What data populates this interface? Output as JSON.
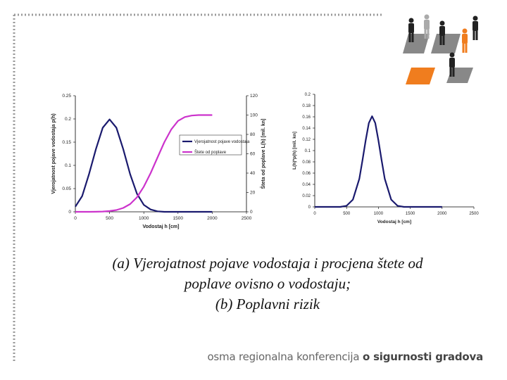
{
  "caption": {
    "line1": "(a) Vjerojatnost pojave vodostaja i procjena štete od",
    "line2": "poplave ovisno o vodostaju;",
    "line3": "(b) Poplavni rizik"
  },
  "footer": {
    "text_regular": "osma regionalna konferencija ",
    "text_bold": "o sigurnosti gradova"
  },
  "logo": {
    "icon": "people-figures-logo-icon",
    "highlight_color": "#f07d1e",
    "figure_color": "#222222",
    "tile_color": "#888888"
  },
  "chart_data": [
    {
      "type": "line",
      "xlabel": "Vodostaj h [cm]",
      "ylabel": "Vjerojatnost pojave vodostaja p(h)",
      "y2label": "Šteta od poplave L(h) [mil. kn]",
      "xlim": [
        0,
        2500
      ],
      "ylim": [
        0,
        0.25
      ],
      "y2lim": [
        0,
        120
      ],
      "xticks": [
        "0",
        "500",
        "1000",
        "1500",
        "2000",
        "2500"
      ],
      "yticks": [
        "0",
        "0.05",
        "0.1",
        "0.15",
        "0.2",
        "0.25"
      ],
      "y2ticks": [
        "0",
        "20",
        "40",
        "60",
        "80",
        "100",
        "120"
      ],
      "legend_position": "right",
      "grid": false,
      "series": [
        {
          "name": "Vjerojatnost pojave vodostaja",
          "axis": "left",
          "color": "#1a1a6e",
          "x": [
            0,
            100,
            200,
            300,
            400,
            500,
            600,
            700,
            800,
            900,
            1000,
            1100,
            1200,
            1300,
            1400,
            1500,
            1600,
            1700,
            1800,
            1900,
            2000
          ],
          "y": [
            0.011,
            0.034,
            0.081,
            0.135,
            0.181,
            0.199,
            0.181,
            0.135,
            0.081,
            0.039,
            0.015,
            0.005,
            0.001,
            0.0,
            0.0,
            0.0,
            0.0,
            0.0,
            0.0,
            0.0,
            0.0
          ]
        },
        {
          "name": "Štete od poplave",
          "axis": "right",
          "color": "#cc33cc",
          "x": [
            0,
            100,
            200,
            300,
            400,
            500,
            600,
            700,
            800,
            900,
            1000,
            1100,
            1200,
            1300,
            1400,
            1500,
            1600,
            1700,
            1800,
            1900,
            2000
          ],
          "y": [
            0,
            0,
            0,
            0.1,
            0.3,
            0.8,
            1.8,
            4.0,
            8.0,
            15.0,
            26.0,
            40.0,
            56.0,
            72.0,
            85.0,
            94.0,
            98.0,
            99.5,
            100.0,
            100.0,
            100.0
          ]
        }
      ]
    },
    {
      "type": "line",
      "xlabel": "Vodostaj h [cm]",
      "ylabel": "L(h)*p(h) [mil. kn]",
      "xlim": [
        0,
        2500
      ],
      "ylim": [
        0,
        0.2
      ],
      "xticks": [
        "0",
        "500",
        "1000",
        "1500",
        "2000",
        "2500"
      ],
      "yticks": [
        "0",
        "0.02",
        "0.04",
        "0.06",
        "0.08",
        "0.1",
        "0.12",
        "0.14",
        "0.16",
        "0.18",
        "0.2"
      ],
      "grid": false,
      "series": [
        {
          "color": "#1a1a6e",
          "x": [
            0,
            400,
            500,
            600,
            700,
            750,
            800,
            850,
            900,
            950,
            1000,
            1050,
            1100,
            1200,
            1300,
            1400,
            1500,
            2000
          ],
          "y": [
            0,
            0.0,
            0.002,
            0.013,
            0.05,
            0.083,
            0.118,
            0.149,
            0.161,
            0.149,
            0.118,
            0.083,
            0.05,
            0.013,
            0.002,
            0.0,
            0.0,
            0.0
          ]
        }
      ]
    }
  ]
}
